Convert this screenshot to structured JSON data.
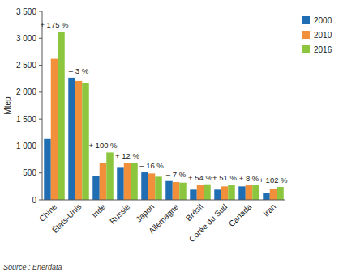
{
  "chart_data": {
    "type": "bar",
    "y_label": "Mtep",
    "source": "Source : Enerdata",
    "categories": [
      "Chine",
      "États-Unis",
      "Inde",
      "Russie",
      "Japon",
      "Allemagne",
      "Brésil",
      "Corée du Sud",
      "Canada",
      "Iran"
    ],
    "annotations": [
      "+ 175 %",
      "– 3 %",
      "+ 100 %",
      "+ 12 %",
      "– 16 %",
      "– 7 %",
      "+ 54 %",
      "+ 51 %",
      "+ 8 %",
      "+ 102 %"
    ],
    "series": [
      {
        "name": "2000",
        "color": "#1f6db3",
        "values": [
          1130,
          2270,
          440,
          610,
          510,
          350,
          190,
          190,
          250,
          120
        ]
      },
      {
        "name": "2010",
        "color": "#f28f3b",
        "values": [
          2620,
          2210,
          690,
          690,
          490,
          330,
          270,
          250,
          270,
          200
        ]
      },
      {
        "name": "2016",
        "color": "#8cc63f",
        "values": [
          3120,
          2170,
          880,
          690,
          430,
          320,
          290,
          280,
          270,
          240
        ]
      }
    ],
    "ylim": [
      0,
      3500
    ],
    "yticks": [
      0,
      500,
      {
        "value": 1000,
        "label": "1 000"
      },
      {
        "value": 1500,
        "label": "1 500"
      },
      {
        "value": 2000,
        "label": "2 000"
      },
      {
        "value": 2500,
        "label": "2 500"
      },
      {
        "value": 3000,
        "label": "3 000"
      },
      {
        "value": 3500,
        "label": "3 500"
      }
    ],
    "grid": false,
    "legend": "top-right"
  }
}
